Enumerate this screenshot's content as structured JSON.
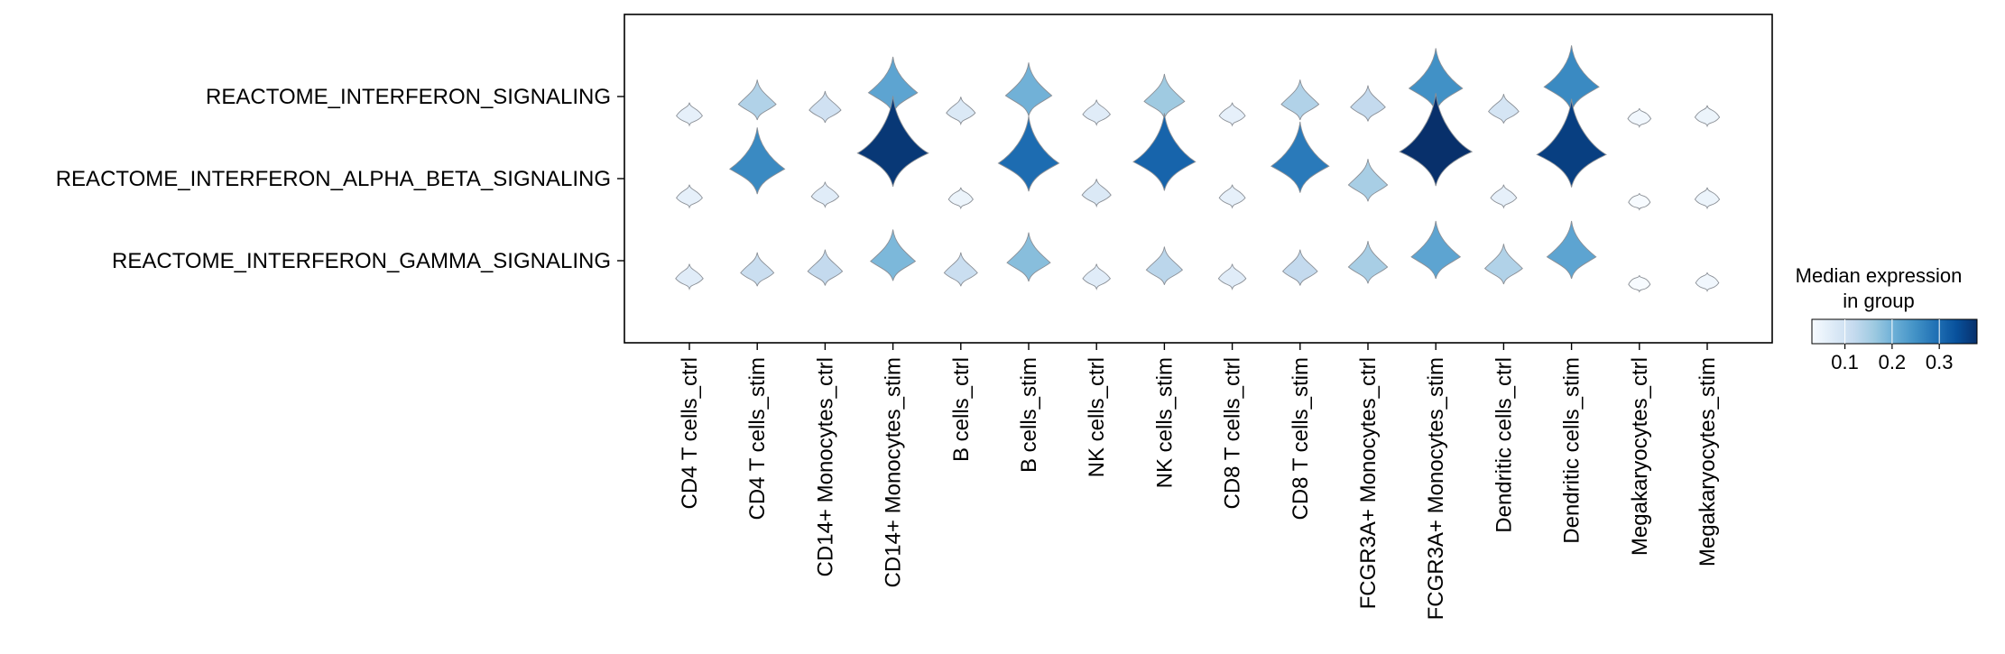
{
  "chart_data": {
    "type": "stacked_violin",
    "rows": [
      "REACTOME_INTERFERON_SIGNALING",
      "REACTOME_INTERFERON_ALPHA_BETA_SIGNALING",
      "REACTOME_INTERFERON_GAMMA_SIGNALING"
    ],
    "columns": [
      "CD4 T cells_ctrl",
      "CD4 T cells_stim",
      "CD14+ Monocytes_ctrl",
      "CD14+ Monocytes_stim",
      "B cells_ctrl",
      "B cells_stim",
      "NK cells_ctrl",
      "NK cells_stim",
      "CD8 T cells_ctrl",
      "CD8 T cells_stim",
      "FCGR3A+ Monocytes_ctrl",
      "FCGR3A+ Monocytes_stim",
      "Dendritic cells_ctrl",
      "Dendritic cells_stim",
      "Megakaryocytes_ctrl",
      "Megakaryocytes_stim"
    ],
    "median_expression": [
      [
        0.06,
        0.14,
        0.1,
        0.22,
        0.08,
        0.2,
        0.07,
        0.16,
        0.06,
        0.14,
        0.12,
        0.25,
        0.09,
        0.26,
        0.04,
        0.05
      ],
      [
        0.06,
        0.26,
        0.07,
        0.37,
        0.05,
        0.3,
        0.08,
        0.31,
        0.06,
        0.28,
        0.15,
        0.38,
        0.06,
        0.36,
        0.03,
        0.05
      ],
      [
        0.07,
        0.11,
        0.12,
        0.19,
        0.11,
        0.18,
        0.07,
        0.13,
        0.07,
        0.12,
        0.15,
        0.22,
        0.14,
        0.22,
        0.03,
        0.04
      ]
    ],
    "colorbar": {
      "title": "Median expression\nin group",
      "range": [
        0.03,
        0.38
      ],
      "ticks": [
        0.1,
        0.2,
        0.3
      ],
      "tick_labels": [
        "0.1",
        "0.2",
        "0.3"
      ],
      "colormap": "Blues"
    }
  }
}
